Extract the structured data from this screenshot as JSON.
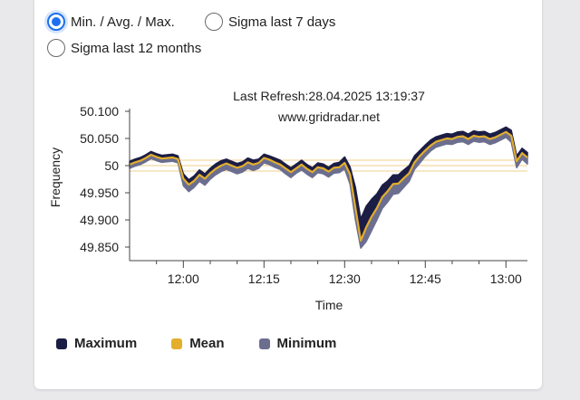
{
  "controls": {
    "options": [
      {
        "label": "Min. / Avg. / Max.",
        "selected": true
      },
      {
        "label": "Sigma last 7 days",
        "selected": false
      },
      {
        "label": "Sigma last 12 months",
        "selected": false
      }
    ]
  },
  "colors": {
    "maximum": "#1c1d45",
    "mean": "#e2ae2c",
    "minimum": "#6c6e8f",
    "radio_accent": "#1e6ff0",
    "reference_lines": "#efcf8a"
  },
  "chart_data": {
    "type": "area",
    "annotations": [
      "Last Refresh:28.04.2025 13:19:37",
      "www.gridradar.net"
    ],
    "xlabel": "Time",
    "ylabel": "Frequency",
    "x_ticks": [
      "12:00",
      "12:15",
      "12:30",
      "12:45",
      "13:00"
    ],
    "x_tick_minutes": [
      0,
      15,
      30,
      45,
      60
    ],
    "xlim_minutes": [
      -10,
      64
    ],
    "y_ticks": [
      "50.100",
      "50.050",
      "50",
      "49.950",
      "49.900",
      "49.850"
    ],
    "y_tick_values": [
      50.1,
      50.05,
      50.0,
      49.95,
      49.9,
      49.85
    ],
    "ylim": [
      49.825,
      50.105
    ],
    "reference_lines": [
      50.01,
      50.0,
      49.99
    ],
    "grid": false,
    "legend_position": "bottom-left",
    "x_minutes": [
      -10,
      -9,
      -8,
      -7,
      -6,
      -5,
      -4,
      -3,
      -2,
      -1,
      0,
      1,
      2,
      3,
      4,
      5,
      6,
      7,
      8,
      9,
      10,
      11,
      12,
      13,
      14,
      15,
      16,
      17,
      18,
      19,
      20,
      21,
      22,
      23,
      24,
      25,
      26,
      27,
      28,
      29,
      30,
      31,
      32,
      33,
      34,
      35,
      36,
      37,
      38,
      39,
      40,
      41,
      42,
      43,
      44,
      45,
      46,
      47,
      48,
      49,
      50,
      51,
      52,
      53,
      54,
      55,
      56,
      57,
      58,
      59,
      60,
      61,
      62,
      63,
      64
    ],
    "series": [
      {
        "name": "Maximum",
        "values": [
          50.008,
          50.012,
          50.015,
          50.02,
          50.026,
          50.022,
          50.019,
          50.02,
          50.021,
          50.018,
          49.985,
          49.974,
          49.981,
          49.992,
          49.985,
          49.995,
          50.003,
          50.009,
          50.012,
          50.008,
          50.004,
          50.007,
          50.014,
          50.01,
          50.012,
          50.021,
          50.018,
          50.014,
          50.01,
          50.003,
          49.996,
          50.003,
          50.01,
          50.002,
          49.996,
          50.005,
          50.003,
          49.997,
          50.004,
          50.006,
          50.016,
          49.998,
          49.96,
          49.902,
          49.925,
          49.938,
          49.948,
          49.964,
          49.972,
          49.983,
          49.983,
          49.992,
          50.0,
          50.018,
          50.028,
          50.038,
          50.047,
          50.053,
          50.056,
          50.059,
          50.058,
          50.062,
          50.063,
          50.058,
          50.064,
          50.062,
          50.063,
          50.058,
          50.061,
          50.066,
          50.071,
          50.065,
          50.018,
          50.032,
          50.024
        ]
      },
      {
        "name": "Mean",
        "values": [
          50.002,
          50.006,
          50.009,
          50.014,
          50.02,
          50.016,
          50.013,
          50.014,
          50.015,
          50.012,
          49.976,
          49.965,
          49.972,
          49.983,
          49.976,
          49.986,
          49.994,
          50.0,
          50.004,
          50.0,
          49.996,
          49.999,
          50.006,
          50.002,
          50.005,
          50.014,
          50.011,
          50.006,
          50.002,
          49.995,
          49.988,
          49.995,
          50.002,
          49.994,
          49.988,
          49.997,
          49.995,
          49.989,
          49.996,
          49.997,
          50.005,
          49.984,
          49.922,
          49.862,
          49.886,
          49.906,
          49.922,
          49.942,
          49.953,
          49.966,
          49.967,
          49.977,
          49.986,
          50.006,
          50.018,
          50.028,
          50.037,
          50.044,
          50.047,
          50.05,
          50.049,
          50.053,
          50.054,
          50.049,
          50.055,
          50.053,
          50.054,
          50.049,
          50.052,
          50.057,
          50.062,
          50.055,
          50.008,
          50.023,
          50.015
        ]
      },
      {
        "name": "Minimum",
        "values": [
          49.995,
          49.999,
          50.002,
          50.007,
          50.013,
          50.009,
          50.006,
          50.007,
          50.008,
          50.005,
          49.963,
          49.952,
          49.96,
          49.971,
          49.964,
          49.975,
          49.983,
          49.989,
          49.993,
          49.989,
          49.985,
          49.988,
          49.995,
          49.991,
          49.995,
          50.005,
          50.002,
          49.997,
          49.993,
          49.985,
          49.978,
          49.986,
          49.992,
          49.984,
          49.978,
          49.987,
          49.985,
          49.979,
          49.986,
          49.987,
          49.994,
          49.966,
          49.9,
          49.848,
          49.86,
          49.88,
          49.9,
          49.921,
          49.933,
          49.947,
          49.949,
          49.96,
          49.971,
          49.993,
          50.005,
          50.017,
          50.027,
          50.034,
          50.037,
          50.04,
          50.039,
          50.043,
          50.044,
          50.039,
          50.045,
          50.043,
          50.044,
          50.039,
          50.042,
          50.047,
          50.052,
          50.043,
          49.996,
          50.012,
          50.003
        ]
      }
    ]
  }
}
